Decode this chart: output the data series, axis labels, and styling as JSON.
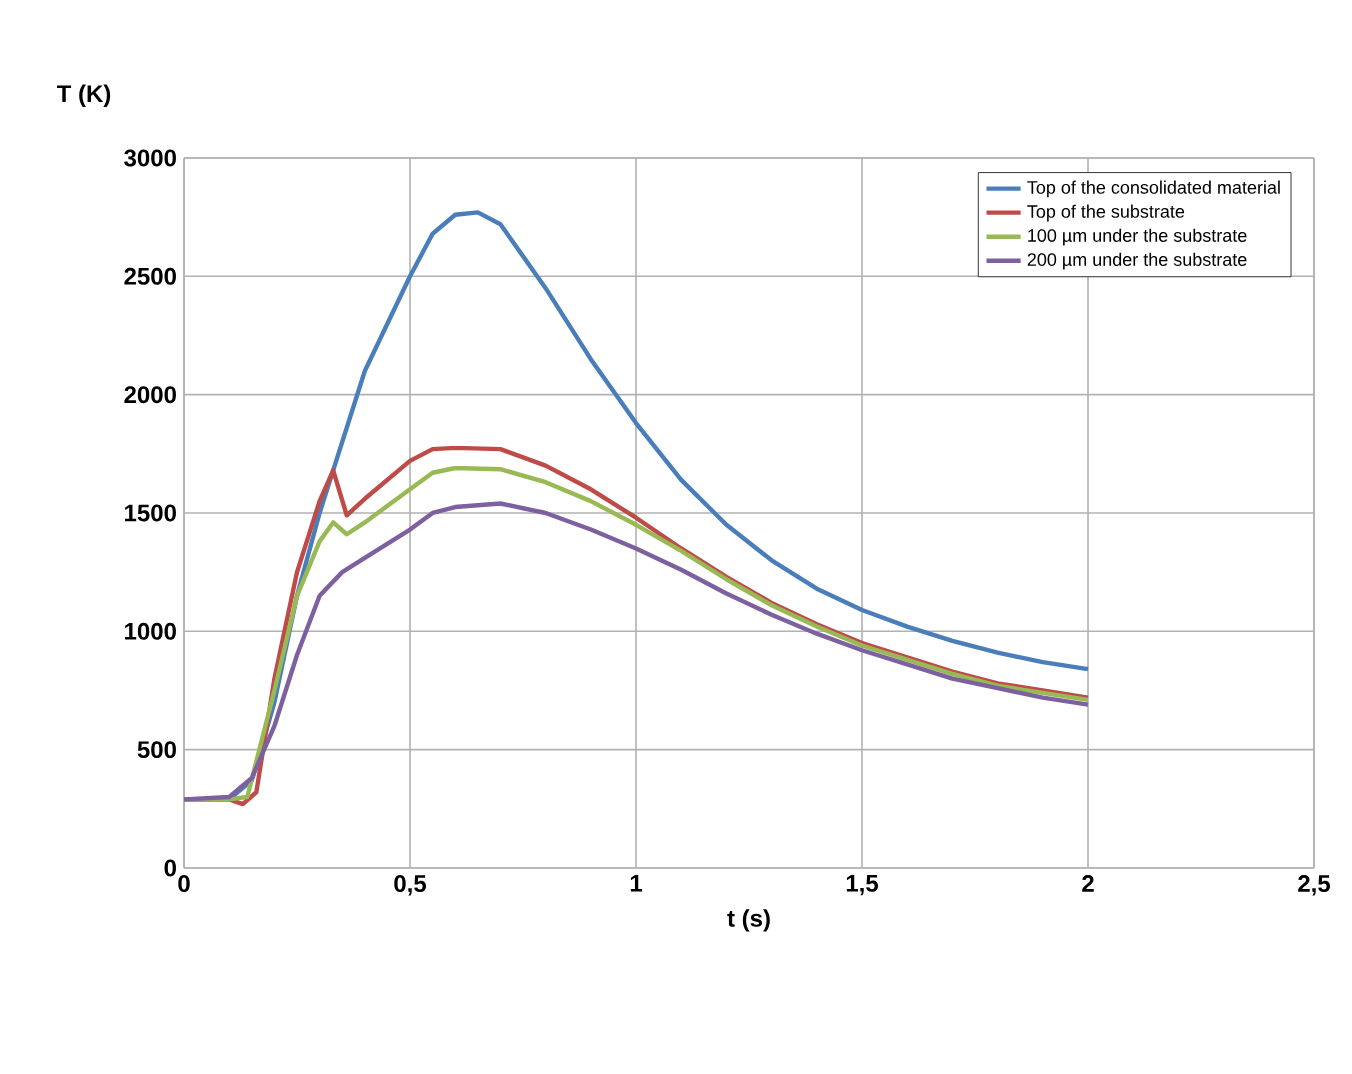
{
  "chart_data": {
    "type": "line",
    "xlabel": "t (s)",
    "ylabel": "T (K)",
    "xlim": [
      0,
      2.5
    ],
    "ylim": [
      0,
      3000
    ],
    "xticks": [
      0,
      {
        "value": 0.5,
        "label": "0,5"
      },
      1,
      {
        "value": 1.5,
        "label": "1,5"
      },
      2,
      {
        "value": 2.5,
        "label": "2,5"
      }
    ],
    "yticks": [
      0,
      500,
      1000,
      1500,
      2000,
      2500,
      3000
    ],
    "grid": true,
    "legend": "top right",
    "marker": "none",
    "line_style": "solid",
    "series": [
      {
        "name": "Top of the consolidated material",
        "color": "#4a7ebb",
        "x": [
          0,
          0.1,
          0.15,
          0.2,
          0.25,
          0.3,
          0.33,
          0.4,
          0.5,
          0.55,
          0.6,
          0.65,
          0.7,
          0.8,
          0.9,
          1.0,
          1.1,
          1.2,
          1.3,
          1.4,
          1.5,
          1.6,
          1.7,
          1.8,
          1.9,
          2.0
        ],
        "values": [
          290,
          290,
          370,
          700,
          1150,
          1500,
          1680,
          2100,
          2500,
          2680,
          2760,
          2770,
          2720,
          2450,
          2150,
          1880,
          1640,
          1450,
          1300,
          1180,
          1090,
          1020,
          960,
          910,
          870,
          840
        ]
      },
      {
        "name": "Top of the substrate",
        "color": "#be4b48",
        "x": [
          0,
          0.1,
          0.13,
          0.16,
          0.2,
          0.25,
          0.3,
          0.33,
          0.36,
          0.4,
          0.45,
          0.5,
          0.55,
          0.6,
          0.7,
          0.8,
          0.9,
          1.0,
          1.1,
          1.2,
          1.3,
          1.4,
          1.5,
          1.6,
          1.7,
          1.8,
          1.9,
          2.0
        ],
        "values": [
          290,
          290,
          270,
          320,
          800,
          1250,
          1550,
          1680,
          1490,
          1560,
          1640,
          1720,
          1770,
          1775,
          1770,
          1700,
          1600,
          1480,
          1350,
          1230,
          1120,
          1030,
          950,
          890,
          830,
          780,
          750,
          720
        ]
      },
      {
        "name": "100 µm under the substrate",
        "color": "#98b954",
        "x": [
          0,
          0.1,
          0.14,
          0.2,
          0.25,
          0.3,
          0.33,
          0.36,
          0.4,
          0.5,
          0.55,
          0.6,
          0.7,
          0.8,
          0.9,
          1.0,
          1.1,
          1.2,
          1.3,
          1.4,
          1.5,
          1.6,
          1.7,
          1.8,
          1.9,
          2.0
        ],
        "values": [
          290,
          290,
          300,
          750,
          1150,
          1380,
          1460,
          1410,
          1460,
          1600,
          1670,
          1690,
          1685,
          1630,
          1550,
          1450,
          1340,
          1220,
          1110,
          1020,
          940,
          880,
          820,
          770,
          740,
          710
        ]
      },
      {
        "name": "200 µm under the substrate",
        "color": "#7d60a0",
        "x": [
          0,
          0.1,
          0.15,
          0.2,
          0.25,
          0.3,
          0.35,
          0.4,
          0.5,
          0.55,
          0.6,
          0.7,
          0.8,
          0.9,
          1.0,
          1.1,
          1.2,
          1.3,
          1.4,
          1.5,
          1.6,
          1.7,
          1.8,
          1.9,
          2.0
        ],
        "values": [
          290,
          300,
          380,
          600,
          900,
          1150,
          1250,
          1310,
          1430,
          1500,
          1525,
          1540,
          1500,
          1430,
          1350,
          1260,
          1160,
          1070,
          990,
          920,
          860,
          800,
          760,
          720,
          690
        ]
      }
    ]
  }
}
